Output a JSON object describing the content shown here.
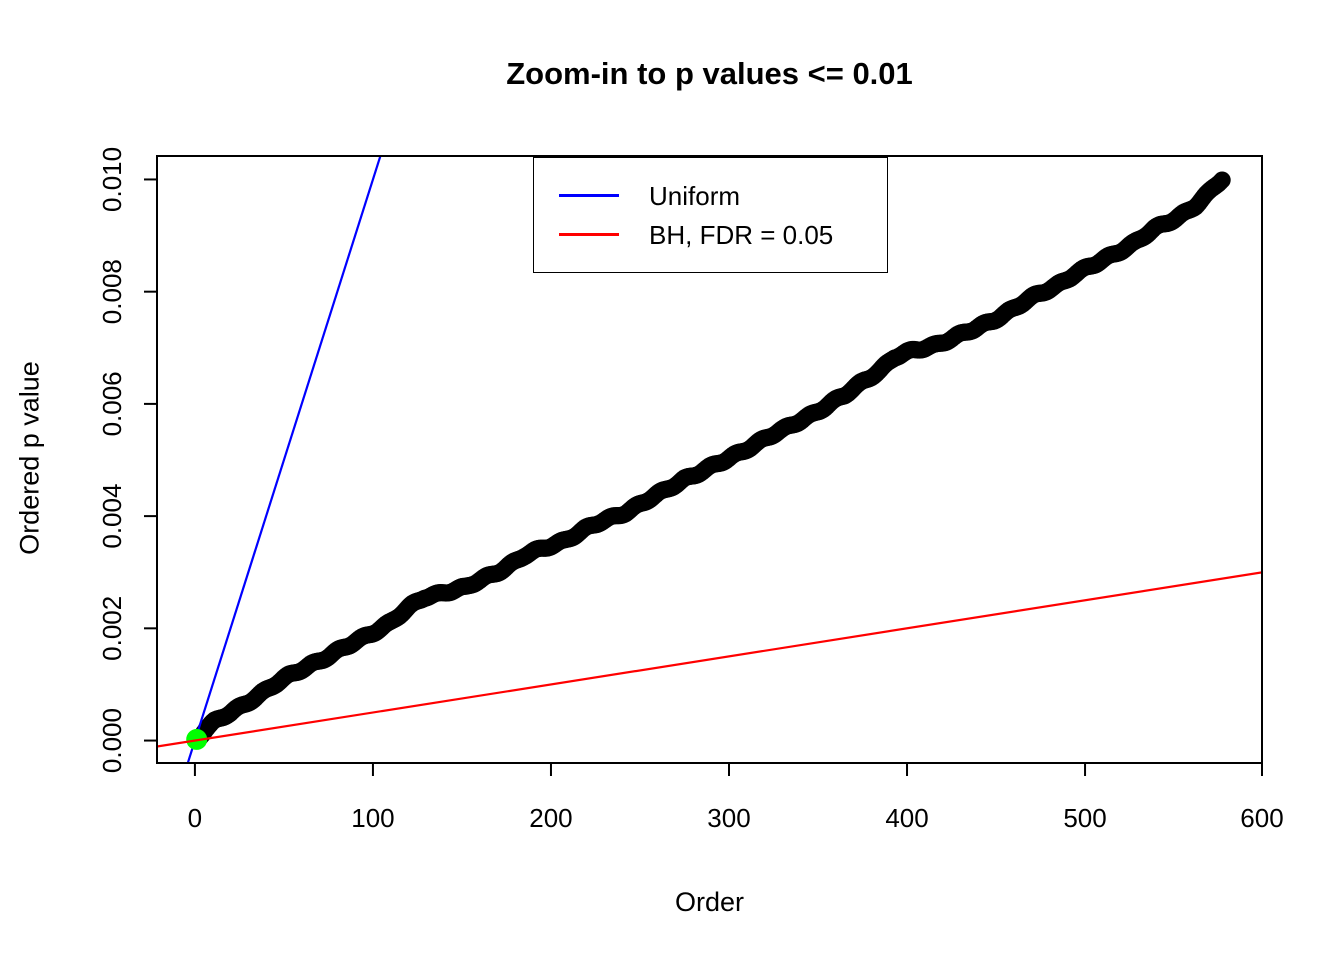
{
  "chart_data": {
    "type": "scatter",
    "title": "Zoom-in to p values <= 0.01",
    "xlabel": "Order",
    "ylabel": "Ordered p value",
    "xlim": [
      -21.3,
      599.4
    ],
    "ylim": [
      -0.0004,
      0.010418
    ],
    "x_ticks": {
      "values": [
        0,
        100,
        200,
        300,
        400,
        500,
        600
      ],
      "labels": [
        "0",
        "100",
        "200",
        "300",
        "400",
        "500",
        "600"
      ]
    },
    "y_ticks": {
      "values": [
        0,
        0.002,
        0.004,
        0.006,
        0.008,
        0.01
      ],
      "labels": [
        "0.000",
        "0.002",
        "0.004",
        "0.006",
        "0.008",
        "0.010"
      ]
    },
    "grid": false,
    "background": "#FFFFFF",
    "frame_color": "#000000",
    "legend": {
      "position": "top-center-inside",
      "entries": [
        {
          "label": "Uniform",
          "color": "#0000FF"
        },
        {
          "label": "BH, FDR = 0.05",
          "color": "#FF0000"
        }
      ]
    },
    "series": [
      {
        "name": "ordered-p-values",
        "kind": "points",
        "color": "#000000",
        "marker": "filled-circle",
        "marker_radius_px": 8.6,
        "n_points": 577,
        "sampled_points": [
          [
            1,
            2e-05
          ],
          [
            6,
            0.0002
          ],
          [
            11,
            0.00033
          ],
          [
            20,
            0.00049
          ],
          [
            31,
            0.00072
          ],
          [
            42,
            0.00094
          ],
          [
            53,
            0.00115
          ],
          [
            65,
            0.00136
          ],
          [
            76,
            0.00152
          ],
          [
            87,
            0.0017
          ],
          [
            98,
            0.0019
          ],
          [
            110,
            0.00211
          ],
          [
            121,
            0.00238
          ],
          [
            129,
            0.00256
          ],
          [
            140,
            0.00265
          ],
          [
            152,
            0.00272
          ],
          [
            163,
            0.0029
          ],
          [
            174,
            0.00308
          ],
          [
            185,
            0.00329
          ],
          [
            197,
            0.00344
          ],
          [
            208,
            0.00358
          ],
          [
            219,
            0.00376
          ],
          [
            230,
            0.00392
          ],
          [
            242,
            0.00408
          ],
          [
            253,
            0.00426
          ],
          [
            264,
            0.00445
          ],
          [
            275,
            0.00467
          ],
          [
            287,
            0.00483
          ],
          [
            298,
            0.00499
          ],
          [
            309,
            0.00519
          ],
          [
            320,
            0.00538
          ],
          [
            331,
            0.00554
          ],
          [
            343,
            0.00576
          ],
          [
            354,
            0.00595
          ],
          [
            365,
            0.00615
          ],
          [
            376,
            0.00642
          ],
          [
            385,
            0.00661
          ],
          [
            393,
            0.00683
          ],
          [
            404,
            0.00695
          ],
          [
            416,
            0.00706
          ],
          [
            427,
            0.00719
          ],
          [
            438,
            0.00733
          ],
          [
            449,
            0.00751
          ],
          [
            461,
            0.00772
          ],
          [
            472,
            0.00792
          ],
          [
            483,
            0.0081
          ],
          [
            494,
            0.00831
          ],
          [
            506,
            0.00849
          ],
          [
            517,
            0.00869
          ],
          [
            528,
            0.00888
          ],
          [
            539,
            0.00911
          ],
          [
            551,
            0.00931
          ],
          [
            562,
            0.00954
          ],
          [
            570,
            0.00977
          ],
          [
            577,
            0.01
          ]
        ]
      },
      {
        "name": "Uniform",
        "kind": "abline",
        "color": "#0000FF",
        "intercept": 0,
        "slope": 0.0001
      },
      {
        "name": "smallest-p-highlight",
        "kind": "points",
        "color": "#00FF00",
        "marker": "filled-circle",
        "marker_radius_px": 10.5,
        "n_points": 1,
        "sampled_points": [
          [
            1,
            2e-05
          ]
        ]
      },
      {
        "name": "BH, FDR = 0.05",
        "kind": "abline",
        "color": "#FF0000",
        "intercept": 0,
        "slope": 5e-06
      }
    ]
  }
}
